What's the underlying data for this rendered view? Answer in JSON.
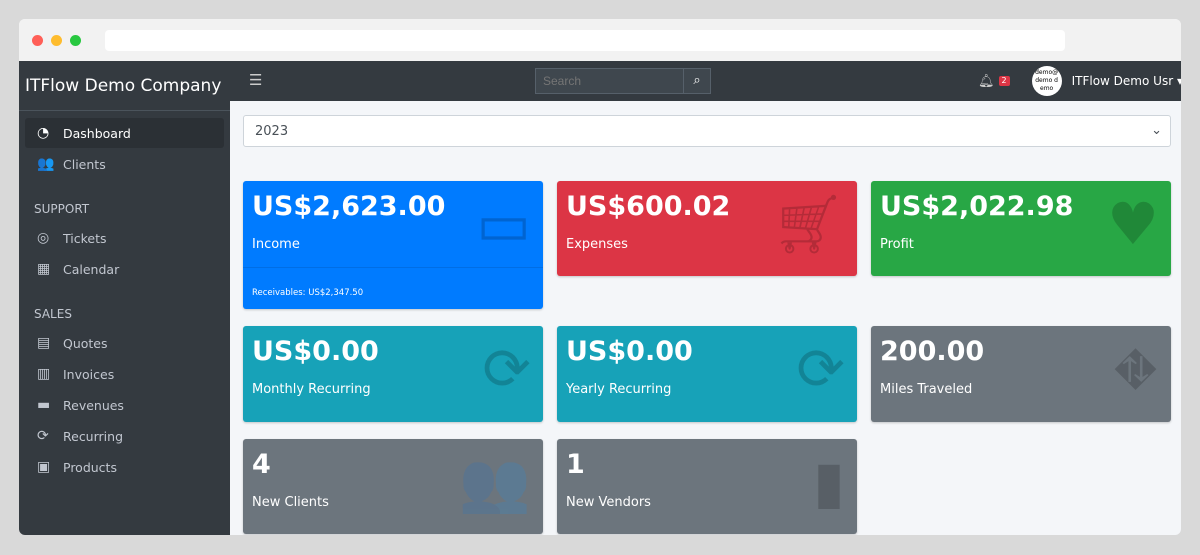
{
  "company": "ITFlow Demo Company",
  "sidebar": {
    "items": [
      {
        "label": "Dashboard",
        "icon": "tachometer-icon"
      },
      {
        "label": "Clients",
        "icon": "users-icon"
      }
    ],
    "support_header": "SUPPORT",
    "support": [
      {
        "label": "Tickets",
        "icon": "life-ring-icon"
      },
      {
        "label": "Calendar",
        "icon": "calendar-icon"
      }
    ],
    "sales_header": "SALES",
    "sales": [
      {
        "label": "Quotes",
        "icon": "file-icon"
      },
      {
        "label": "Invoices",
        "icon": "invoice-icon"
      },
      {
        "label": "Revenues",
        "icon": "credit-card-icon"
      },
      {
        "label": "Recurring",
        "icon": "sync-icon"
      },
      {
        "label": "Products",
        "icon": "box-icon"
      }
    ]
  },
  "topbar": {
    "search_placeholder": "Search",
    "notifications": "2",
    "avatar_text": "demo@demo demo",
    "user": "ITFlow Demo Usr"
  },
  "year": "2023",
  "cards": [
    {
      "value": "US$2,623.00",
      "label": "Income",
      "footer": "Receivables: US$2,347.50",
      "color": "#007bff"
    },
    {
      "value": "US$600.02",
      "label": "Expenses",
      "color": "#dc3545"
    },
    {
      "value": "US$2,022.98",
      "label": "Profit",
      "color": "#28a745"
    },
    {
      "value": "US$0.00",
      "label": "Monthly Recurring",
      "color": "#17a2b8"
    },
    {
      "value": "US$0.00",
      "label": "Yearly Recurring",
      "color": "#17a2b8"
    },
    {
      "value": "200.00",
      "label": "Miles Traveled",
      "color": "#6c757d"
    },
    {
      "value": "4",
      "label": "New Clients",
      "color": "#6c757d"
    },
    {
      "value": "1",
      "label": "New Vendors",
      "color": "#6c757d"
    }
  ]
}
